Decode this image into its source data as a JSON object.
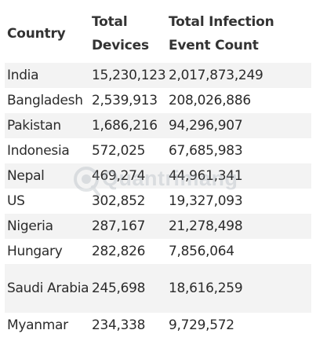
{
  "table": {
    "headers": {
      "country": "Country",
      "devices": "Total Devices",
      "events": "Total Infection Event Count"
    },
    "rows": [
      {
        "country": "India",
        "devices": "15,230,123",
        "events": "2,017,873,249"
      },
      {
        "country": "Bangladesh",
        "devices": "2,539,913",
        "events": "208,026,886"
      },
      {
        "country": "Pakistan",
        "devices": "1,686,216",
        "events": "94,296,907"
      },
      {
        "country": "Indonesia",
        "devices": "572,025",
        "events": "67,685,983"
      },
      {
        "country": "Nepal",
        "devices": "469,274",
        "events": "44,961,341"
      },
      {
        "country": "US",
        "devices": "302,852",
        "events": "19,327,093"
      },
      {
        "country": "Nigeria",
        "devices": "287,167",
        "events": "21,278,498"
      },
      {
        "country": "Hungary",
        "devices": "282,826",
        "events": "7,856,064"
      },
      {
        "country": "Saudi Arabia",
        "devices": "245,698",
        "events": "18,616,259"
      },
      {
        "country": "Myanmar",
        "devices": "234,338",
        "events": "9,729,572"
      }
    ]
  },
  "watermark": {
    "text": "Quantrimang"
  },
  "colors": {
    "text": "#2b2b2b",
    "stripe": "#f3f3f3",
    "watermark": "#9aa4ad"
  }
}
